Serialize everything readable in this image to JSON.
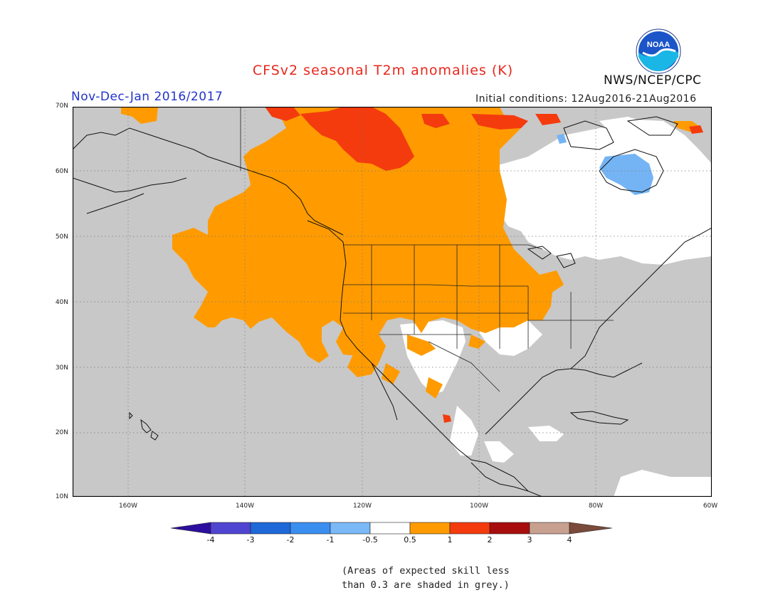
{
  "header": {
    "title": "CFSv2 seasonal T2m anomalies (K)",
    "season": "Nov-Dec-Jan 2016/2017",
    "initial_conditions": "Initial conditions: 12Aug2016-21Aug2016",
    "agency": "NWS/NCEP/CPC",
    "logo_text": "NOAA"
  },
  "map": {
    "region": "North America",
    "lat_labels": [
      "70N",
      "60N",
      "50N",
      "40N",
      "30N",
      "20N",
      "10N"
    ],
    "lon_labels": [
      "160W",
      "140W",
      "120W",
      "100W",
      "80W",
      "60W"
    ],
    "colors": {
      "grey": "#c8c8c8",
      "white": "#ffffff",
      "orange": "#ff9b00",
      "red_orange": "#f43b0e",
      "light_blue": "#74b4f4",
      "coastline": "#111111",
      "grid": "#777777"
    }
  },
  "colorbar": {
    "labels": [
      "-4",
      "-3",
      "-2",
      "-1",
      "-0.5",
      "0.5",
      "1",
      "2",
      "3",
      "4"
    ],
    "colors": [
      "#2c0f9e",
      "#4f45d0",
      "#1e68d8",
      "#3a8ef0",
      "#7ab8f6",
      "#ffffff",
      "#ff9b00",
      "#f43b0e",
      "#a80d0d",
      "#c8a090",
      "#7a4a3a"
    ]
  },
  "note": {
    "line1": "(Areas of expected skill less",
    "line2": "than 0.3 are shaded in grey.)"
  }
}
